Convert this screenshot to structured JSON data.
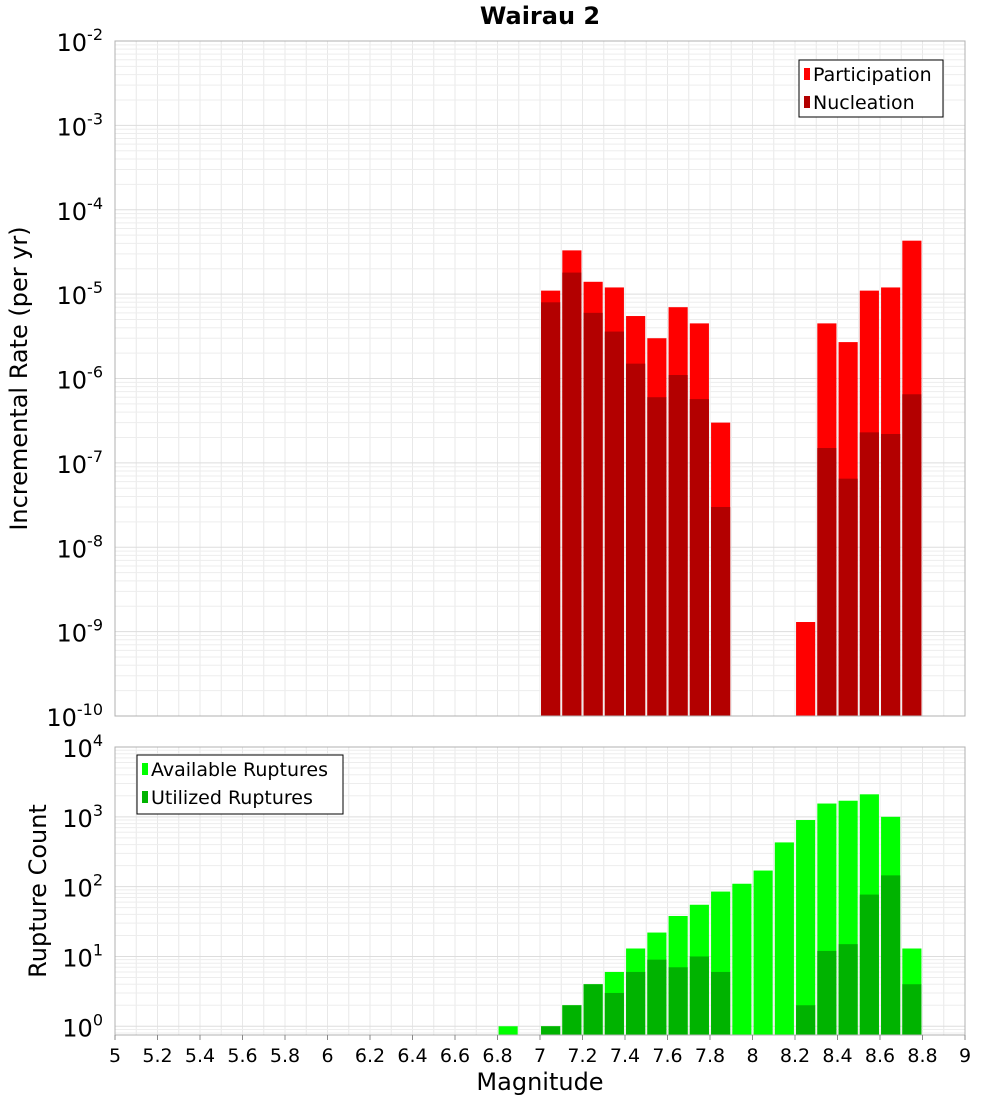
{
  "chart_data": [
    {
      "type": "bar",
      "title": "Wairau 2",
      "xlabel": "",
      "ylabel": "Incremental Rate (per yr)",
      "yscale": "log",
      "ylim": [
        1e-10,
        0.01
      ],
      "xlim": [
        5,
        9
      ],
      "grid": true,
      "legend_position": "top-right",
      "y_ticks": [
        {
          "mantissa": "10",
          "exp": "-10",
          "value": 1e-10
        },
        {
          "mantissa": "10",
          "exp": "-9",
          "value": 1e-09
        },
        {
          "mantissa": "10",
          "exp": "-8",
          "value": 1e-08
        },
        {
          "mantissa": "10",
          "exp": "-7",
          "value": 1e-07
        },
        {
          "mantissa": "10",
          "exp": "-6",
          "value": 1e-06
        },
        {
          "mantissa": "10",
          "exp": "-5",
          "value": 1e-05
        },
        {
          "mantissa": "10",
          "exp": "-4",
          "value": 0.0001
        },
        {
          "mantissa": "10",
          "exp": "-3",
          "value": 0.001
        },
        {
          "mantissa": "10",
          "exp": "-2",
          "value": 0.01
        }
      ],
      "series": [
        {
          "name": "Participation",
          "color": "#ff0000",
          "x": [
            7.05,
            7.15,
            7.25,
            7.35,
            7.45,
            7.55,
            7.65,
            7.75,
            7.85,
            8.25,
            8.35,
            8.45,
            8.55,
            8.65,
            8.75
          ],
          "values": [
            1.1e-05,
            3.3e-05,
            1.4e-05,
            1.2e-05,
            5.5e-06,
            3e-06,
            7e-06,
            4.5e-06,
            3e-07,
            1.3e-09,
            4.5e-06,
            2.7e-06,
            1.1e-05,
            1.2e-05,
            4.3e-05
          ]
        },
        {
          "name": "Nucleation",
          "color": "#b30000",
          "x": [
            7.05,
            7.15,
            7.25,
            7.35,
            7.45,
            7.55,
            7.65,
            7.75,
            7.85,
            8.35,
            8.45,
            8.55,
            8.65,
            8.75
          ],
          "values": [
            8e-06,
            1.8e-05,
            6e-06,
            3.6e-06,
            1.5e-06,
            6e-07,
            1.1e-06,
            5.7e-07,
            3e-08,
            1.5e-07,
            6.5e-08,
            2.3e-07,
            2.2e-07,
            6.5e-07
          ]
        }
      ]
    },
    {
      "type": "bar",
      "title": "",
      "xlabel": "Magnitude",
      "ylabel": "Rupture Count",
      "yscale": "log",
      "ylim": [
        0.75,
        10000
      ],
      "xlim": [
        5,
        9
      ],
      "grid": true,
      "legend_position": "top-left",
      "y_ticks": [
        {
          "mantissa": "10",
          "exp": "0",
          "value": 1
        },
        {
          "mantissa": "10",
          "exp": "1",
          "value": 10
        },
        {
          "mantissa": "10",
          "exp": "2",
          "value": 100
        },
        {
          "mantissa": "10",
          "exp": "3",
          "value": 1000
        },
        {
          "mantissa": "10",
          "exp": "4",
          "value": 10000
        }
      ],
      "x_ticks": [
        "5",
        "5.2",
        "5.4",
        "5.6",
        "5.8",
        "6",
        "6.2",
        "6.4",
        "6.6",
        "6.8",
        "7",
        "7.2",
        "7.4",
        "7.6",
        "7.8",
        "8",
        "8.2",
        "8.4",
        "8.6",
        "8.8",
        "9"
      ],
      "series": [
        {
          "name": "Available Ruptures",
          "color": "#00ff00",
          "x": [
            6.85,
            7.05,
            7.15,
            7.25,
            7.35,
            7.45,
            7.55,
            7.65,
            7.75,
            7.85,
            7.95,
            8.05,
            8.15,
            8.25,
            8.35,
            8.45,
            8.55,
            8.65,
            8.75
          ],
          "values": [
            1,
            1,
            2,
            4,
            6,
            13,
            22,
            38,
            55,
            85,
            110,
            170,
            430,
            900,
            1550,
            1700,
            2100,
            1000,
            13
          ]
        },
        {
          "name": "Utilized Ruptures",
          "color": "#00b300",
          "x": [
            7.05,
            7.15,
            7.25,
            7.35,
            7.45,
            7.55,
            7.65,
            7.75,
            7.85,
            8.25,
            8.35,
            8.45,
            8.55,
            8.65,
            8.75
          ],
          "values": [
            1,
            2,
            4,
            3,
            6,
            9,
            7,
            10,
            6,
            2,
            12,
            15,
            77,
            145,
            4
          ]
        }
      ]
    }
  ]
}
